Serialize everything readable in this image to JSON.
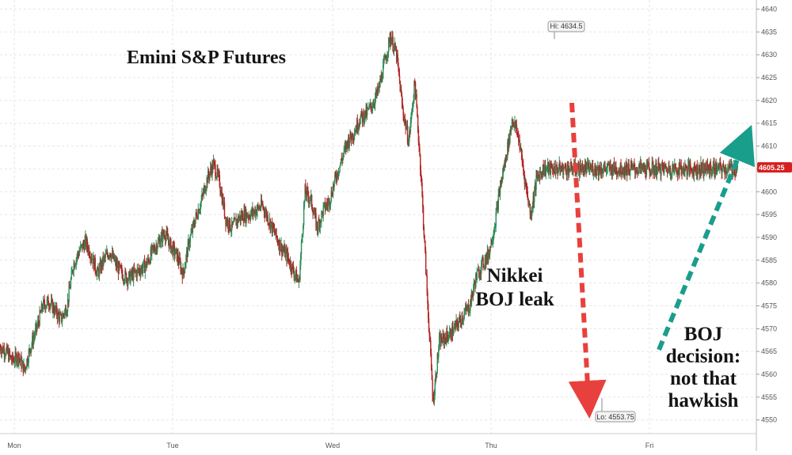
{
  "chart_data": {
    "type": "line",
    "title": "Emini S&P Futures",
    "xlabel": "",
    "ylabel": "",
    "x_ticks": [
      "Mon",
      "Tue",
      "Wed",
      "Thu",
      "Fri"
    ],
    "ylim": [
      4547,
      4642
    ],
    "y_ticks": [
      4550,
      4555,
      4560,
      4565,
      4570,
      4575,
      4580,
      4585,
      4590,
      4595,
      4600,
      4605,
      4610,
      4615,
      4620,
      4625,
      4630,
      4635,
      4640
    ],
    "grid": true,
    "axis_side": "right",
    "up_color": "#2e8b57",
    "down_color": "#b22222",
    "high": {
      "label": "Hi: 4634.5",
      "value": 4634.5
    },
    "low": {
      "label": "Lo: 4553.75",
      "value": 4553.75
    },
    "last": {
      "label": "4605.25",
      "value": 4605.25,
      "color": "#d62020"
    },
    "series": [
      {
        "x": [
          0,
          0.2,
          0.4,
          0.6,
          0.8,
          1.0,
          1.2,
          1.4,
          1.6,
          1.8,
          2.0,
          2.2,
          2.4,
          2.6,
          2.8,
          3.0,
          3.2,
          3.4,
          3.6,
          3.8,
          4.0,
          4.2,
          4.4,
          4.6,
          4.8,
          5.0,
          5.2,
          5.4,
          5.6,
          5.8,
          6.0,
          6.2,
          6.4,
          6.6,
          6.8,
          7.0,
          7.2,
          7.4,
          7.6,
          7.8,
          8.0,
          8.2,
          8.4,
          8.6,
          8.8,
          9.0,
          9.2,
          9.4,
          9.6,
          9.8,
          10.0,
          10.2,
          10.4,
          10.6,
          10.8,
          11.0,
          11.2,
          11.4,
          11.6,
          11.8,
          12.0,
          12.2,
          12.4,
          12.6,
          12.8,
          13.0,
          13.2,
          13.4,
          13.6,
          13.8,
          14.0,
          14.2,
          14.4,
          14.6,
          14.8,
          15.0,
          15.2,
          15.4,
          15.6,
          15.8,
          16.0,
          16.2,
          16.4,
          16.6,
          16.8,
          17.0,
          17.2,
          17.4,
          17.6,
          17.8,
          18.0,
          18.2,
          18.4,
          18.6,
          18.8,
          19.0,
          19.2,
          19.4,
          19.6,
          19.8,
          20.0,
          20.2,
          20.4,
          20.6,
          20.8,
          21.0,
          21.2,
          21.4,
          21.6,
          21.8,
          22.0,
          22.2,
          22.4,
          22.6,
          22.8,
          23.0,
          23.2,
          23.4,
          23.6,
          23.8,
          24.0,
          24.2,
          24.4,
          24.6,
          24.8
        ],
        "values": [
          4566,
          4565,
          4563,
          4564,
          4561,
          4566,
          4570,
          4575,
          4576,
          4574,
          4572,
          4575,
          4584,
          4587,
          4589,
          4586,
          4582,
          4585,
          4587,
          4584,
          4582,
          4581,
          4582,
          4583,
          4584,
          4587,
          4589,
          4591,
          4588,
          4586,
          4582,
          4589,
          4594,
          4598,
          4603,
          4606,
          4602,
          4594,
          4592,
          4594,
          4595,
          4595,
          4596,
          4597,
          4594,
          4591,
          4588,
          4586,
          4583,
          4580,
          4600,
          4598,
          4592,
          4596,
          4598,
          4603,
          4607,
          4611,
          4613,
          4616,
          4617,
          4619,
          4622,
          4628,
          4634,
          4630,
          4618,
          4611,
          4624,
          4604,
          4578,
          4554,
          4567,
          4568,
          4569,
          4571,
          4573,
          4575,
          4581,
          4584,
          4586,
          4592,
          4601,
          4608,
          4616,
          4612,
          4603,
          4595,
          4603,
          4605,
          4605,
          4605,
          4605,
          4605,
          4605,
          4605,
          4605,
          4605,
          4605,
          4605,
          4605,
          4605,
          4605,
          4605,
          4605,
          4605,
          4605,
          4605,
          4605,
          4605,
          4605,
          4605,
          4605,
          4605,
          4605,
          4605,
          4605,
          4605,
          4605,
          4605,
          4605,
          4605,
          4605,
          4605,
          4605
        ]
      }
    ],
    "annotations": [
      {
        "lines": [
          "Nikkei",
          "BOJ leak"
        ],
        "arrow": "down",
        "color": "#e8403c"
      },
      {
        "lines": [
          "BOJ",
          "decision:",
          "not that",
          "hawkish"
        ],
        "arrow": "up",
        "color": "#1a9e8c"
      }
    ]
  }
}
